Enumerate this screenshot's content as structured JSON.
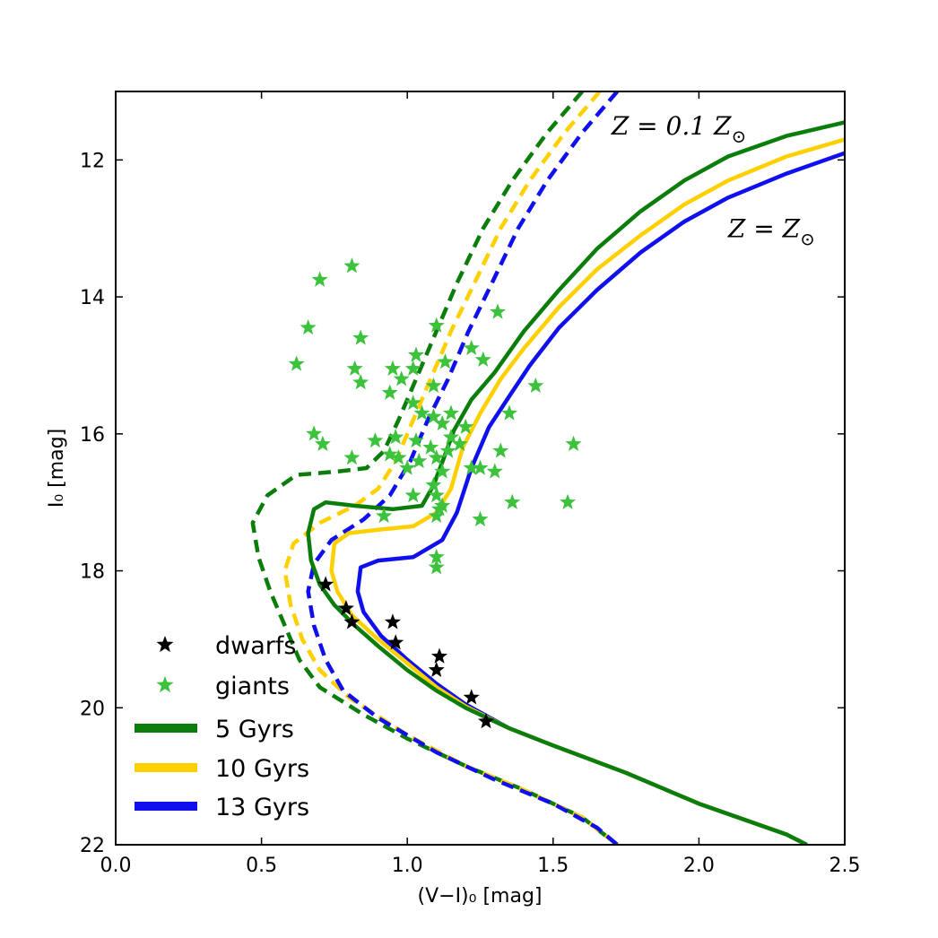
{
  "chart_data": {
    "type": "scatter",
    "xlabel": "(V−I)₀ [mag]",
    "ylabel": "I₀ [mag]",
    "xlim": [
      0.0,
      2.5
    ],
    "ylim": [
      22,
      11
    ],
    "y_inverted": true,
    "x_ticks": [
      0.0,
      0.5,
      1.0,
      1.5,
      2.0,
      2.5
    ],
    "x_tick_labels": [
      "0.0",
      "0.5",
      "1.0",
      "1.5",
      "2.0",
      "2.5"
    ],
    "y_ticks": [
      12,
      14,
      16,
      18,
      20,
      22
    ],
    "y_tick_labels": [
      "12",
      "14",
      "16",
      "18",
      "20",
      "22"
    ],
    "grid": false,
    "legend_position": "bottom-left",
    "annotations": [
      {
        "text_main": "Z = 0.1  Z",
        "subscript": "⊙",
        "x": 1.7,
        "y": 11.5
      },
      {
        "text_main": "Z = Z",
        "subscript": "⊙",
        "x": 2.1,
        "y": 13.0
      }
    ],
    "scatter_series": [
      {
        "name": "dwarfs",
        "color": "#000000",
        "marker": "star",
        "points": [
          [
            0.72,
            18.2
          ],
          [
            0.79,
            18.55
          ],
          [
            0.81,
            18.75
          ],
          [
            0.95,
            18.75
          ],
          [
            0.96,
            19.05
          ],
          [
            1.11,
            19.25
          ],
          [
            1.1,
            19.45
          ],
          [
            1.22,
            19.85
          ],
          [
            1.27,
            20.2
          ]
        ]
      },
      {
        "name": "giants",
        "color": "#3cc23c",
        "marker": "star",
        "points": [
          [
            0.81,
            13.55
          ],
          [
            0.7,
            13.75
          ],
          [
            0.66,
            14.45
          ],
          [
            0.84,
            14.6
          ],
          [
            0.62,
            14.98
          ],
          [
            0.82,
            15.05
          ],
          [
            0.84,
            15.25
          ],
          [
            0.95,
            15.05
          ],
          [
            0.98,
            15.2
          ],
          [
            0.94,
            15.4
          ],
          [
            1.03,
            14.85
          ],
          [
            1.02,
            15.05
          ],
          [
            1.09,
            15.3
          ],
          [
            1.1,
            14.42
          ],
          [
            1.13,
            14.95
          ],
          [
            1.22,
            14.75
          ],
          [
            1.26,
            14.92
          ],
          [
            1.31,
            14.22
          ],
          [
            1.44,
            15.3
          ],
          [
            1.35,
            15.7
          ],
          [
            1.02,
            15.55
          ],
          [
            1.05,
            15.7
          ],
          [
            1.09,
            15.75
          ],
          [
            1.12,
            15.85
          ],
          [
            1.15,
            15.7
          ],
          [
            1.2,
            15.9
          ],
          [
            0.68,
            16.0
          ],
          [
            0.71,
            16.15
          ],
          [
            0.81,
            16.35
          ],
          [
            0.89,
            16.1
          ],
          [
            0.94,
            16.3
          ],
          [
            0.96,
            16.05
          ],
          [
            0.97,
            16.35
          ],
          [
            1.0,
            16.5
          ],
          [
            1.03,
            16.1
          ],
          [
            1.04,
            16.4
          ],
          [
            1.08,
            16.2
          ],
          [
            1.1,
            16.35
          ],
          [
            1.12,
            16.55
          ],
          [
            1.14,
            16.25
          ],
          [
            1.15,
            16.05
          ],
          [
            1.18,
            16.15
          ],
          [
            1.22,
            16.5
          ],
          [
            1.25,
            16.5
          ],
          [
            1.3,
            16.55
          ],
          [
            1.32,
            16.25
          ],
          [
            1.57,
            16.15
          ],
          [
            1.02,
            16.9
          ],
          [
            1.09,
            16.75
          ],
          [
            1.1,
            16.9
          ],
          [
            1.12,
            17.05
          ],
          [
            1.11,
            17.1
          ],
          [
            1.1,
            17.2
          ],
          [
            1.36,
            17.0
          ],
          [
            1.25,
            17.25
          ],
          [
            1.55,
            17.0
          ],
          [
            0.92,
            17.2
          ],
          [
            1.1,
            17.8
          ],
          [
            1.1,
            17.95
          ]
        ]
      }
    ],
    "isochrones": [
      {
        "name": "5 Gyrs",
        "color": "#0a7d0a",
        "metallicity": "Z_sun",
        "style": "solid",
        "points": [
          [
            2.5,
            11.45
          ],
          [
            2.3,
            11.65
          ],
          [
            2.1,
            11.95
          ],
          [
            1.95,
            12.3
          ],
          [
            1.8,
            12.75
          ],
          [
            1.65,
            13.3
          ],
          [
            1.52,
            13.9
          ],
          [
            1.4,
            14.5
          ],
          [
            1.3,
            15.1
          ],
          [
            1.22,
            15.5
          ],
          [
            1.16,
            15.95
          ],
          [
            1.13,
            16.3
          ],
          [
            1.09,
            16.75
          ],
          [
            1.05,
            17.05
          ],
          [
            0.95,
            17.1
          ],
          [
            0.82,
            17.05
          ],
          [
            0.72,
            17.0
          ],
          [
            0.68,
            17.1
          ],
          [
            0.66,
            17.45
          ],
          [
            0.67,
            17.85
          ],
          [
            0.7,
            18.2
          ],
          [
            0.75,
            18.5
          ],
          [
            0.82,
            18.8
          ],
          [
            0.9,
            19.1
          ],
          [
            1.0,
            19.45
          ],
          [
            1.1,
            19.75
          ],
          [
            1.2,
            20.0
          ],
          [
            1.35,
            20.3
          ],
          [
            1.5,
            20.55
          ],
          [
            1.75,
            20.95
          ],
          [
            2.0,
            21.4
          ],
          [
            2.3,
            21.85
          ],
          [
            2.37,
            22.0
          ]
        ]
      },
      {
        "name": "10 Gyrs",
        "color": "#ffd000",
        "metallicity": "Z_sun",
        "style": "solid",
        "points": [
          [
            2.5,
            11.7
          ],
          [
            2.3,
            11.95
          ],
          [
            2.1,
            12.3
          ],
          [
            1.95,
            12.65
          ],
          [
            1.8,
            13.1
          ],
          [
            1.65,
            13.6
          ],
          [
            1.52,
            14.15
          ],
          [
            1.4,
            14.75
          ],
          [
            1.32,
            15.2
          ],
          [
            1.25,
            15.7
          ],
          [
            1.19,
            16.2
          ],
          [
            1.15,
            16.8
          ],
          [
            1.1,
            17.15
          ],
          [
            1.02,
            17.35
          ],
          [
            0.9,
            17.4
          ],
          [
            0.8,
            17.45
          ],
          [
            0.75,
            17.6
          ],
          [
            0.74,
            18.0
          ],
          [
            0.76,
            18.3
          ],
          [
            0.81,
            18.65
          ],
          [
            0.9,
            19.0
          ],
          [
            1.0,
            19.35
          ],
          [
            1.1,
            19.7
          ],
          [
            1.2,
            19.98
          ],
          [
            1.35,
            20.3
          ],
          [
            1.5,
            20.55
          ],
          [
            1.75,
            20.95
          ],
          [
            2.0,
            21.4
          ],
          [
            2.3,
            21.85
          ],
          [
            2.37,
            22.0
          ]
        ]
      },
      {
        "name": "13 Gyrs",
        "color": "#1010ee",
        "metallicity": "Z_sun",
        "style": "solid",
        "points": [
          [
            2.5,
            11.9
          ],
          [
            2.3,
            12.2
          ],
          [
            2.1,
            12.55
          ],
          [
            1.95,
            12.9
          ],
          [
            1.8,
            13.35
          ],
          [
            1.65,
            13.9
          ],
          [
            1.52,
            14.45
          ],
          [
            1.42,
            15.0
          ],
          [
            1.35,
            15.45
          ],
          [
            1.28,
            15.9
          ],
          [
            1.22,
            16.5
          ],
          [
            1.17,
            17.15
          ],
          [
            1.12,
            17.55
          ],
          [
            1.02,
            17.8
          ],
          [
            0.9,
            17.85
          ],
          [
            0.84,
            17.95
          ],
          [
            0.83,
            18.3
          ],
          [
            0.85,
            18.6
          ],
          [
            0.91,
            18.95
          ],
          [
            1.0,
            19.3
          ],
          [
            1.1,
            19.65
          ],
          [
            1.2,
            19.95
          ],
          [
            1.35,
            20.3
          ],
          [
            1.5,
            20.55
          ],
          [
            1.75,
            20.95
          ],
          [
            2.0,
            21.4
          ],
          [
            2.3,
            21.85
          ],
          [
            2.37,
            22.0
          ]
        ]
      },
      {
        "name": "5 Gyrs (Z=0.1)",
        "color": "#0a7d0a",
        "metallicity": "0.1 Z_sun",
        "style": "dashed",
        "points": [
          [
            1.6,
            11.0
          ],
          [
            1.48,
            11.6
          ],
          [
            1.36,
            12.3
          ],
          [
            1.26,
            13.0
          ],
          [
            1.17,
            13.8
          ],
          [
            1.1,
            14.5
          ],
          [
            1.03,
            15.2
          ],
          [
            0.97,
            15.8
          ],
          [
            0.92,
            16.25
          ],
          [
            0.86,
            16.5
          ],
          [
            0.76,
            16.55
          ],
          [
            0.62,
            16.6
          ],
          [
            0.52,
            16.9
          ],
          [
            0.47,
            17.3
          ],
          [
            0.49,
            17.8
          ],
          [
            0.53,
            18.3
          ],
          [
            0.58,
            18.8
          ],
          [
            0.63,
            19.3
          ],
          [
            0.7,
            19.7
          ],
          [
            0.85,
            20.1
          ],
          [
            1.0,
            20.45
          ],
          [
            1.2,
            20.85
          ],
          [
            1.4,
            21.2
          ],
          [
            1.6,
            21.6
          ],
          [
            1.72,
            22.0
          ]
        ]
      },
      {
        "name": "10 Gyrs (Z=0.1)",
        "color": "#ffd000",
        "metallicity": "0.1 Z_sun",
        "style": "dashed",
        "points": [
          [
            1.66,
            11.0
          ],
          [
            1.54,
            11.6
          ],
          [
            1.42,
            12.3
          ],
          [
            1.32,
            13.0
          ],
          [
            1.23,
            13.8
          ],
          [
            1.15,
            14.5
          ],
          [
            1.08,
            15.2
          ],
          [
            1.02,
            15.8
          ],
          [
            0.96,
            16.4
          ],
          [
            0.9,
            16.8
          ],
          [
            0.82,
            17.05
          ],
          [
            0.7,
            17.3
          ],
          [
            0.61,
            17.6
          ],
          [
            0.58,
            18.0
          ],
          [
            0.6,
            18.5
          ],
          [
            0.64,
            19.0
          ],
          [
            0.7,
            19.45
          ],
          [
            0.8,
            19.85
          ],
          [
            1.0,
            20.4
          ],
          [
            1.2,
            20.85
          ],
          [
            1.4,
            21.2
          ],
          [
            1.6,
            21.6
          ],
          [
            1.72,
            22.0
          ]
        ]
      },
      {
        "name": "13 Gyrs (Z=0.1)",
        "color": "#1010ee",
        "metallicity": "0.1 Z_sun",
        "style": "dashed",
        "points": [
          [
            1.72,
            11.0
          ],
          [
            1.6,
            11.6
          ],
          [
            1.48,
            12.3
          ],
          [
            1.38,
            13.0
          ],
          [
            1.29,
            13.8
          ],
          [
            1.21,
            14.5
          ],
          [
            1.14,
            15.2
          ],
          [
            1.07,
            15.8
          ],
          [
            1.01,
            16.4
          ],
          [
            0.94,
            16.9
          ],
          [
            0.85,
            17.25
          ],
          [
            0.74,
            17.55
          ],
          [
            0.68,
            17.9
          ],
          [
            0.66,
            18.3
          ],
          [
            0.68,
            18.8
          ],
          [
            0.72,
            19.3
          ],
          [
            0.78,
            19.75
          ],
          [
            0.9,
            20.15
          ],
          [
            1.1,
            20.65
          ],
          [
            1.3,
            21.05
          ],
          [
            1.5,
            21.4
          ],
          [
            1.65,
            21.75
          ],
          [
            1.72,
            22.0
          ]
        ]
      }
    ],
    "legend": [
      {
        "label": "dwarfs",
        "type": "marker",
        "color": "#000000"
      },
      {
        "label": "giants",
        "type": "marker",
        "color": "#3cc23c"
      },
      {
        "label": "5 Gyrs",
        "type": "line",
        "color": "#0a7d0a"
      },
      {
        "label": "10 Gyrs",
        "type": "line",
        "color": "#ffd000"
      },
      {
        "label": "13 Gyrs",
        "type": "line",
        "color": "#1010ee"
      }
    ]
  }
}
